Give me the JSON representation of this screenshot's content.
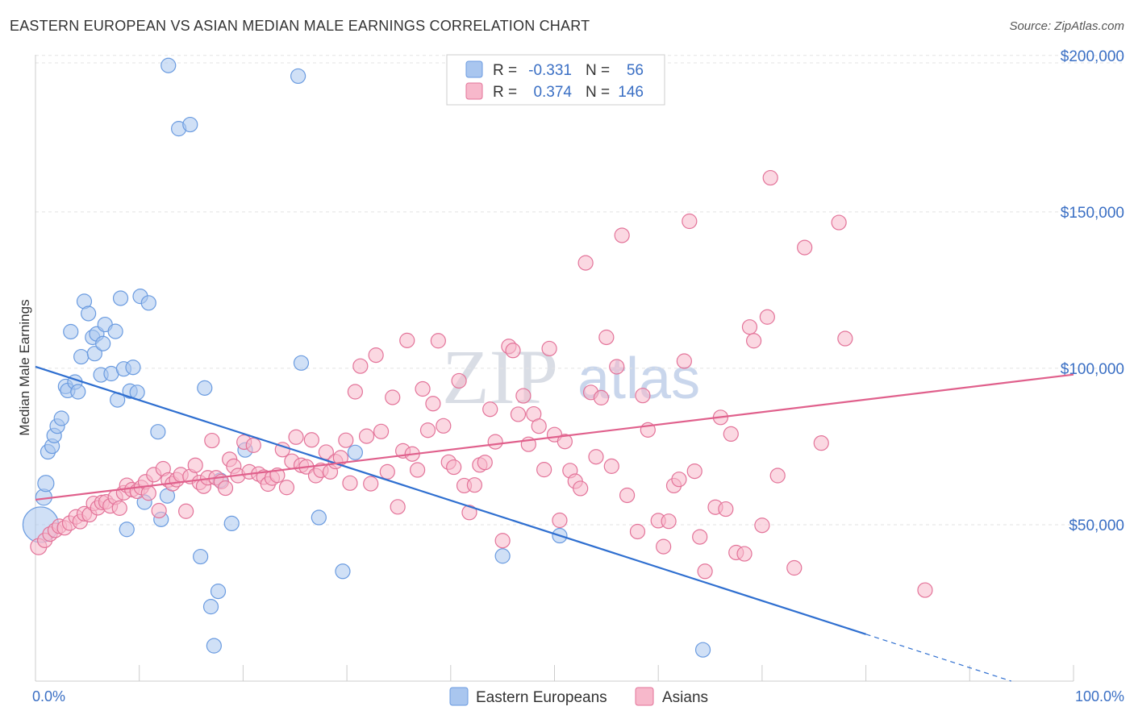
{
  "title": "EASTERN EUROPEAN VS ASIAN MEDIAN MALE EARNINGS CORRELATION CHART",
  "source": "Source: ZipAtlas.com",
  "watermark": {
    "zip": "ZIP",
    "atlas": "atlas"
  },
  "legend": {
    "rows": [
      {
        "r_label": "R =",
        "r_value": "-0.331",
        "n_label": "N =",
        "n_value": "56",
        "color": "#a9c6ef"
      },
      {
        "r_label": "R =",
        "r_value": "0.374",
        "n_label": "N =",
        "n_value": "146",
        "color": "#f7b8cb"
      }
    ]
  },
  "bottom_legend": [
    {
      "label": "Eastern Europeans",
      "color": "#a9c6ef"
    },
    {
      "label": "Asians",
      "color": "#f7b8cb"
    }
  ],
  "chart_data": {
    "type": "scatter",
    "ylabel": "Median Male Earnings",
    "xlim": [
      0,
      100
    ],
    "ylim": [
      0,
      210000
    ],
    "x_tick_labels": [
      "0.0%",
      "100.0%"
    ],
    "y_ticks": [
      {
        "value": 50000,
        "label": "$50,000"
      },
      {
        "value": 100000,
        "label": "$100,000"
      },
      {
        "value": 150000,
        "label": "$150,000"
      },
      {
        "value": 200000,
        "label": "$200,000"
      }
    ],
    "grid": "horizontal-dashed",
    "series": [
      {
        "name": "Eastern Europeans",
        "color": "#6a9be0",
        "fill": "#a9c6ef",
        "trend": {
          "x0": 0,
          "y0": 100500,
          "x1": 80,
          "y1": 15000,
          "dash_to_x": 94,
          "dash_to_y": 0
        },
        "points": [
          [
            0.5,
            50000,
            22
          ],
          [
            0.8,
            58800,
            10
          ],
          [
            1.0,
            63200,
            10
          ],
          [
            1.2,
            73300,
            9
          ],
          [
            1.6,
            75100,
            9
          ],
          [
            1.8,
            78500,
            9
          ],
          [
            2.1,
            81500,
            9
          ],
          [
            2.5,
            84000,
            9
          ],
          [
            2.9,
            94200,
            9
          ],
          [
            3.1,
            92900,
            9
          ],
          [
            3.4,
            111700,
            9
          ],
          [
            3.8,
            95600,
            9
          ],
          [
            4.1,
            92500,
            9
          ],
          [
            4.4,
            103700,
            9
          ],
          [
            4.7,
            121400,
            9
          ],
          [
            5.1,
            117500,
            9
          ],
          [
            5.5,
            109900,
            9
          ],
          [
            5.7,
            104700,
            9
          ],
          [
            5.9,
            111000,
            9
          ],
          [
            6.3,
            97900,
            9
          ],
          [
            6.5,
            107900,
            9
          ],
          [
            6.7,
            114000,
            9
          ],
          [
            7.3,
            98300,
            9
          ],
          [
            7.7,
            111800,
            9
          ],
          [
            7.9,
            89900,
            9
          ],
          [
            8.2,
            122400,
            9
          ],
          [
            8.5,
            99800,
            9
          ],
          [
            8.8,
            48500,
            9
          ],
          [
            9.1,
            92700,
            9
          ],
          [
            9.4,
            100300,
            9
          ],
          [
            9.8,
            92300,
            9
          ],
          [
            10.1,
            123000,
            9
          ],
          [
            10.5,
            57200,
            9
          ],
          [
            10.9,
            120900,
            9
          ],
          [
            11.8,
            79700,
            9
          ],
          [
            12.1,
            51700,
            9
          ],
          [
            12.7,
            59200,
            9
          ],
          [
            12.8,
            196800,
            9
          ],
          [
            13.8,
            176600,
            9
          ],
          [
            14.9,
            177900,
            9
          ],
          [
            15.9,
            39800,
            9
          ],
          [
            16.3,
            93700,
            9
          ],
          [
            16.9,
            23800,
            9
          ],
          [
            17.2,
            11300,
            9
          ],
          [
            17.6,
            28700,
            9
          ],
          [
            17.8,
            64200,
            9
          ],
          [
            18.9,
            50400,
            9
          ],
          [
            20.2,
            73900,
            9
          ],
          [
            25.3,
            193400,
            9
          ],
          [
            25.6,
            101700,
            9
          ],
          [
            27.3,
            52300,
            9
          ],
          [
            29.6,
            35100,
            9
          ],
          [
            30.8,
            73100,
            9
          ],
          [
            45.0,
            40000,
            9
          ],
          [
            50.5,
            46500,
            9
          ],
          [
            64.3,
            10000,
            9
          ]
        ]
      },
      {
        "name": "Asians",
        "color": "#e37399",
        "fill": "#f7b8cb",
        "trend": {
          "x0": 0,
          "y0": 58000,
          "x1": 100,
          "y1": 98000
        },
        "points": [
          [
            0.3,
            43000,
            10
          ],
          [
            0.9,
            45000,
            9
          ],
          [
            1.4,
            47000,
            9
          ],
          [
            1.9,
            48200,
            9
          ],
          [
            2.3,
            49500,
            9
          ],
          [
            2.8,
            49000,
            9
          ],
          [
            3.3,
            50500,
            9
          ],
          [
            3.9,
            52500,
            9
          ],
          [
            4.3,
            51000,
            9
          ],
          [
            4.7,
            53500,
            9
          ],
          [
            5.2,
            53200,
            9
          ],
          [
            5.6,
            56800,
            9
          ],
          [
            6.0,
            55400,
            9
          ],
          [
            6.4,
            57100,
            9
          ],
          [
            6.8,
            57300,
            9
          ],
          [
            7.2,
            56000,
            9
          ],
          [
            7.7,
            58800,
            9
          ],
          [
            8.1,
            55300,
            9
          ],
          [
            8.5,
            60200,
            9
          ],
          [
            8.8,
            62600,
            9
          ],
          [
            9.3,
            61200,
            9
          ],
          [
            9.8,
            60700,
            9
          ],
          [
            10.2,
            61900,
            9
          ],
          [
            10.6,
            63700,
            9
          ],
          [
            10.9,
            60100,
            9
          ],
          [
            11.4,
            66000,
            9
          ],
          [
            11.9,
            54500,
            9
          ],
          [
            12.3,
            67900,
            9
          ],
          [
            12.8,
            64300,
            9
          ],
          [
            13.2,
            63100,
            9
          ],
          [
            13.6,
            64400,
            9
          ],
          [
            14.0,
            66000,
            9
          ],
          [
            14.5,
            54300,
            9
          ],
          [
            14.9,
            65400,
            9
          ],
          [
            15.4,
            69000,
            9
          ],
          [
            15.8,
            63500,
            9
          ],
          [
            16.2,
            62300,
            9
          ],
          [
            16.6,
            65000,
            9
          ],
          [
            17.0,
            76900,
            9
          ],
          [
            17.4,
            65000,
            9
          ],
          [
            17.9,
            63800,
            9
          ],
          [
            18.3,
            61700,
            9
          ],
          [
            18.7,
            70900,
            9
          ],
          [
            19.1,
            68700,
            9
          ],
          [
            19.5,
            65700,
            9
          ],
          [
            20.1,
            76400,
            9
          ],
          [
            20.6,
            66900,
            9
          ],
          [
            21.0,
            75400,
            9
          ],
          [
            21.5,
            66200,
            9
          ],
          [
            22.0,
            65200,
            9
          ],
          [
            22.4,
            63000,
            9
          ],
          [
            22.8,
            64900,
            9
          ],
          [
            23.3,
            65800,
            9
          ],
          [
            23.8,
            74000,
            9
          ],
          [
            24.2,
            61900,
            9
          ],
          [
            24.7,
            70300,
            9
          ],
          [
            25.1,
            78000,
            9
          ],
          [
            25.6,
            69000,
            9
          ],
          [
            26.1,
            68500,
            9
          ],
          [
            26.6,
            77100,
            9
          ],
          [
            27.0,
            65700,
            9
          ],
          [
            27.5,
            67400,
            9
          ],
          [
            28.0,
            73200,
            9
          ],
          [
            28.4,
            66900,
            9
          ],
          [
            28.9,
            70200,
            9
          ],
          [
            29.4,
            71400,
            9
          ],
          [
            29.9,
            77000,
            9
          ],
          [
            30.3,
            63300,
            9
          ],
          [
            30.8,
            92500,
            9
          ],
          [
            31.3,
            100700,
            9
          ],
          [
            31.9,
            78300,
            9
          ],
          [
            32.3,
            63100,
            9
          ],
          [
            32.8,
            104200,
            9
          ],
          [
            33.3,
            79800,
            9
          ],
          [
            33.9,
            66900,
            9
          ],
          [
            34.4,
            90700,
            9
          ],
          [
            34.9,
            55700,
            9
          ],
          [
            35.4,
            73600,
            9
          ],
          [
            35.8,
            108900,
            9
          ],
          [
            36.3,
            72600,
            9
          ],
          [
            36.8,
            67500,
            9
          ],
          [
            37.3,
            93400,
            9
          ],
          [
            37.8,
            80200,
            9
          ],
          [
            38.3,
            88700,
            9
          ],
          [
            38.8,
            108800,
            9
          ],
          [
            39.3,
            81600,
            9
          ],
          [
            39.8,
            70000,
            9
          ],
          [
            40.3,
            68400,
            9
          ],
          [
            40.8,
            96000,
            9
          ],
          [
            41.3,
            62500,
            9
          ],
          [
            41.8,
            53900,
            9
          ],
          [
            42.3,
            62700,
            9
          ],
          [
            42.8,
            69100,
            9
          ],
          [
            43.3,
            69900,
            9
          ],
          [
            43.8,
            86900,
            9
          ],
          [
            44.3,
            76500,
            9
          ],
          [
            45.0,
            44900,
            9
          ],
          [
            45.6,
            107000,
            9
          ],
          [
            46.0,
            105700,
            9
          ],
          [
            46.5,
            85300,
            9
          ],
          [
            47.0,
            91200,
            9
          ],
          [
            47.5,
            75700,
            9
          ],
          [
            48.0,
            85400,
            9
          ],
          [
            48.5,
            81500,
            9
          ],
          [
            49.0,
            67600,
            9
          ],
          [
            49.5,
            106300,
            9
          ],
          [
            50.0,
            78800,
            9
          ],
          [
            50.5,
            51400,
            9
          ],
          [
            51.0,
            76600,
            9
          ],
          [
            51.5,
            67300,
            9
          ],
          [
            52.0,
            63900,
            9
          ],
          [
            52.5,
            61600,
            9
          ],
          [
            53.0,
            133700,
            9
          ],
          [
            53.5,
            92300,
            9
          ],
          [
            54.0,
            71700,
            9
          ],
          [
            54.5,
            90600,
            9
          ],
          [
            55.0,
            109900,
            9
          ],
          [
            55.5,
            68700,
            9
          ],
          [
            56.0,
            100500,
            9
          ],
          [
            56.5,
            142500,
            9
          ],
          [
            57.0,
            59400,
            9
          ],
          [
            58.0,
            47800,
            9
          ],
          [
            58.5,
            91300,
            9
          ],
          [
            59.0,
            80300,
            9
          ],
          [
            60.0,
            51300,
            9
          ],
          [
            60.5,
            43000,
            9
          ],
          [
            61.0,
            51100,
            9
          ],
          [
            61.5,
            62500,
            9
          ],
          [
            62.0,
            64500,
            9
          ],
          [
            62.5,
            102300,
            9
          ],
          [
            63.0,
            147000,
            9
          ],
          [
            63.5,
            67100,
            9
          ],
          [
            64.0,
            46100,
            9
          ],
          [
            64.5,
            35100,
            9
          ],
          [
            65.5,
            55600,
            9
          ],
          [
            66.0,
            84300,
            9
          ],
          [
            66.5,
            55000,
            9
          ],
          [
            67.0,
            79000,
            9
          ],
          [
            67.5,
            41100,
            9
          ],
          [
            68.3,
            40700,
            9
          ],
          [
            68.8,
            113200,
            9
          ],
          [
            69.2,
            108800,
            9
          ],
          [
            70.0,
            49800,
            9
          ],
          [
            70.5,
            116400,
            9
          ],
          [
            70.8,
            160900,
            9
          ],
          [
            71.5,
            65700,
            9
          ],
          [
            73.1,
            36200,
            9
          ],
          [
            74.1,
            138600,
            9
          ],
          [
            75.7,
            76100,
            9
          ],
          [
            77.4,
            146600,
            9
          ],
          [
            78.0,
            109500,
            9
          ],
          [
            85.7,
            29100,
            9
          ]
        ]
      }
    ]
  }
}
